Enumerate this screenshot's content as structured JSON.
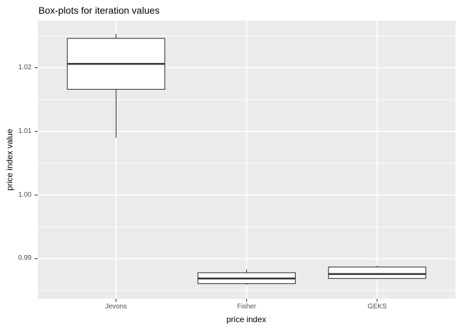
{
  "title": "Box-plots for iteration values",
  "colors": {
    "panel_bg": "#ebebeb",
    "grid": "#ffffff",
    "box_fill": "#ffffff",
    "box_stroke": "#333333",
    "tick_mark": "#333333",
    "axis_text": "#4d4d4d",
    "title_text": "#000000"
  },
  "chart_data": {
    "type": "boxplot",
    "title": "Box-plots for iteration values",
    "xlabel": "price index",
    "ylabel": "price index value",
    "categories": [
      "Jevons",
      "Fisher",
      "GEKS"
    ],
    "series": [
      {
        "name": "Jevons",
        "min": 1.009,
        "q1": 1.0166,
        "median": 1.0206,
        "q3": 1.0246,
        "max": 1.0253
      },
      {
        "name": "Fisher",
        "min": 0.9859,
        "q1": 0.9861,
        "median": 0.9869,
        "q3": 0.9878,
        "max": 0.9883
      },
      {
        "name": "GEKS",
        "min": 0.9869,
        "q1": 0.9869,
        "median": 0.9876,
        "q3": 0.9887,
        "max": 0.9889
      }
    ],
    "ylim": [
      0.9837,
      1.0274
    ],
    "yticks": [
      {
        "value": 0.99,
        "label": "0.99"
      },
      {
        "value": 1.0,
        "label": "1.00"
      },
      {
        "value": 1.01,
        "label": "1.01"
      },
      {
        "value": 1.02,
        "label": "1.02"
      }
    ],
    "yminor": [
      0.985,
      0.995,
      1.005,
      1.015,
      1.025
    ],
    "grid": true,
    "legend": false,
    "panel_theme": "ggplot-grey"
  }
}
